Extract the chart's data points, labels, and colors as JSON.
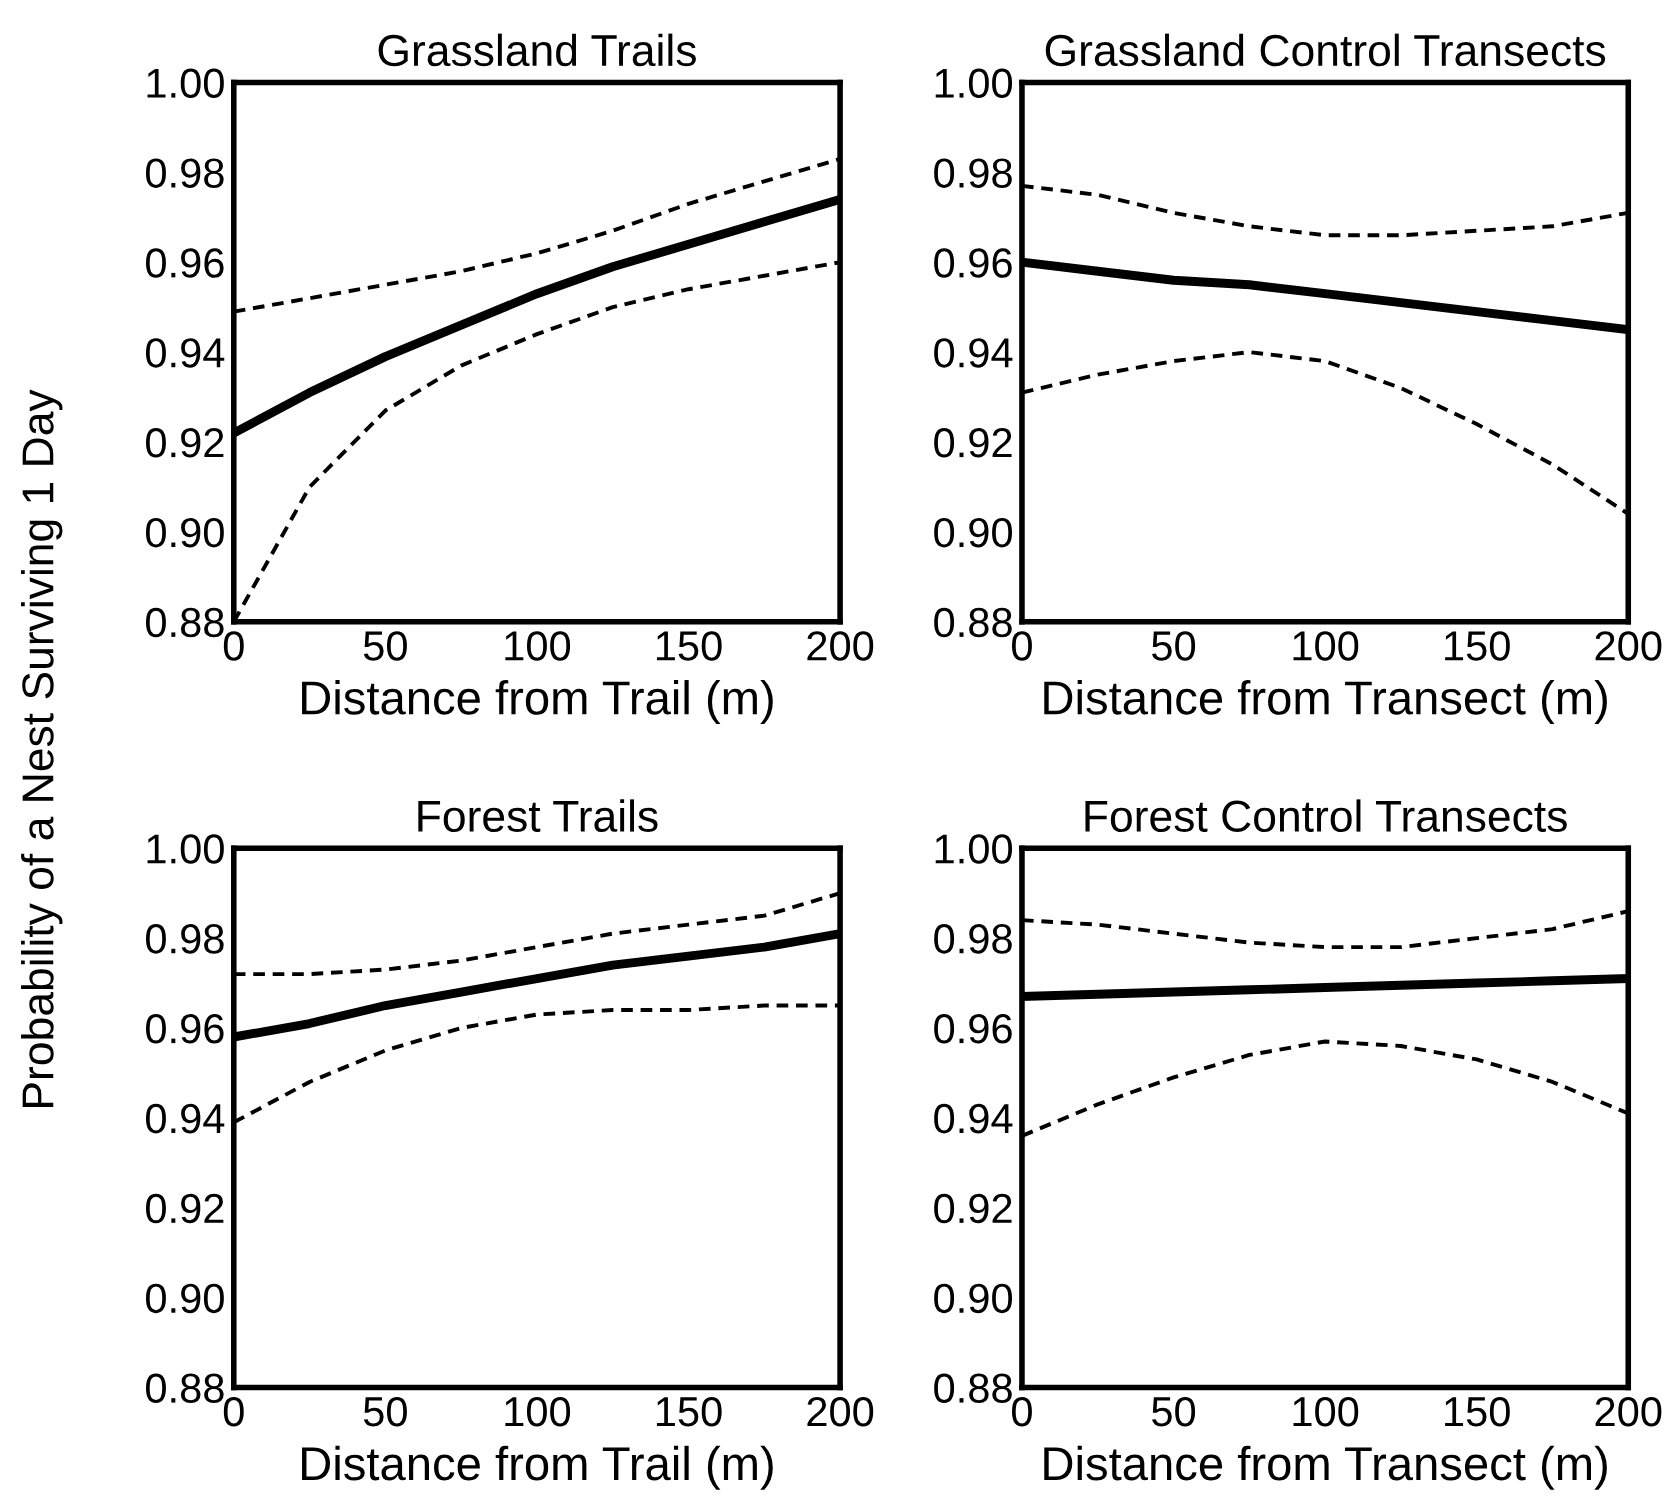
{
  "chart_data": [
    {
      "type": "line",
      "title": "Grassland Trails",
      "xlabel": "Distance from Trail (m)",
      "ylabel": "Probability of a Nest Surviving 1 Day",
      "x": [
        0,
        25,
        50,
        75,
        100,
        125,
        150,
        175,
        200
      ],
      "series": [
        {
          "color": "#000000",
          "line_style": "solid",
          "values": [
            0.922,
            0.931,
            0.939,
            0.946,
            0.953,
            0.959,
            0.964,
            0.969,
            0.974
          ]
        },
        {
          "color": "#000000",
          "line_style": "dashed",
          "values": [
            0.949,
            0.952,
            0.955,
            0.958,
            0.962,
            0.967,
            0.973,
            0.978,
            0.983
          ]
        },
        {
          "color": "#000000",
          "line_style": "dashed",
          "values": [
            0.88,
            0.91,
            0.927,
            0.937,
            0.944,
            0.95,
            0.954,
            0.957,
            0.96
          ]
        }
      ],
      "xlim": [
        0,
        200
      ],
      "ylim": [
        0.88,
        1.0
      ],
      "xticks": [
        0,
        50,
        100,
        150,
        200
      ],
      "yticks": [
        {
          "value": 0.88,
          "label": "0.88"
        },
        {
          "value": 0.9,
          "label": "0.90"
        },
        {
          "value": 0.92,
          "label": "0.92"
        },
        {
          "value": 0.94,
          "label": "0.94"
        },
        {
          "value": 0.96,
          "label": "0.96"
        },
        {
          "value": 0.98,
          "label": "0.98"
        },
        {
          "value": 1.0,
          "label": "1.00"
        }
      ],
      "grid": false,
      "marker": "none"
    },
    {
      "type": "line",
      "title": "Grassland Control Transects",
      "xlabel": "Distance from Transect (m)",
      "x": [
        0,
        25,
        50,
        75,
        100,
        125,
        150,
        175,
        200
      ],
      "series": [
        {
          "color": "#000000",
          "line_style": "solid",
          "values": [
            0.96,
            0.958,
            0.956,
            0.955,
            0.953,
            0.951,
            0.949,
            0.947,
            0.945
          ]
        },
        {
          "color": "#000000",
          "line_style": "dashed",
          "values": [
            0.977,
            0.975,
            0.971,
            0.968,
            0.966,
            0.966,
            0.967,
            0.968,
            0.971
          ]
        },
        {
          "color": "#000000",
          "line_style": "dashed",
          "values": [
            0.931,
            0.935,
            0.938,
            0.94,
            0.938,
            0.932,
            0.924,
            0.915,
            0.904
          ]
        }
      ],
      "xlim": [
        0,
        200
      ],
      "ylim": [
        0.88,
        1.0
      ],
      "xticks": [
        0,
        50,
        100,
        150,
        200
      ],
      "yticks": [
        {
          "value": 0.88,
          "label": "0.88"
        },
        {
          "value": 0.9,
          "label": "0.90"
        },
        {
          "value": 0.92,
          "label": "0.92"
        },
        {
          "value": 0.94,
          "label": "0.94"
        },
        {
          "value": 0.96,
          "label": "0.96"
        },
        {
          "value": 0.98,
          "label": "0.98"
        },
        {
          "value": 1.0,
          "label": "1.00"
        }
      ],
      "grid": false,
      "marker": "none"
    },
    {
      "type": "line",
      "title": "Forest Trails",
      "xlabel": "Distance from Trail (m)",
      "x": [
        0,
        25,
        50,
        75,
        100,
        125,
        150,
        175,
        200
      ],
      "series": [
        {
          "color": "#000000",
          "line_style": "solid",
          "values": [
            0.958,
            0.961,
            0.965,
            0.968,
            0.971,
            0.974,
            0.976,
            0.978,
            0.981
          ]
        },
        {
          "color": "#000000",
          "line_style": "dashed",
          "values": [
            0.972,
            0.972,
            0.973,
            0.975,
            0.978,
            0.981,
            0.983,
            0.985,
            0.99
          ]
        },
        {
          "color": "#000000",
          "line_style": "dashed",
          "values": [
            0.939,
            0.948,
            0.955,
            0.96,
            0.963,
            0.964,
            0.964,
            0.965,
            0.965
          ]
        }
      ],
      "xlim": [
        0,
        200
      ],
      "ylim": [
        0.88,
        1.0
      ],
      "xticks": [
        0,
        50,
        100,
        150,
        200
      ],
      "yticks": [
        {
          "value": 0.88,
          "label": "0.88"
        },
        {
          "value": 0.9,
          "label": "0.90"
        },
        {
          "value": 0.92,
          "label": "0.92"
        },
        {
          "value": 0.94,
          "label": "0.94"
        },
        {
          "value": 0.96,
          "label": "0.96"
        },
        {
          "value": 0.98,
          "label": "0.98"
        },
        {
          "value": 1.0,
          "label": "1.00"
        }
      ],
      "grid": false,
      "marker": "none"
    },
    {
      "type": "line",
      "title": "Forest Control Transects",
      "xlabel": "Distance from Transect (m)",
      "x": [
        0,
        25,
        50,
        75,
        100,
        125,
        150,
        175,
        200
      ],
      "series": [
        {
          "color": "#000000",
          "line_style": "solid",
          "values": [
            0.967,
            0.9675,
            0.968,
            0.9685,
            0.969,
            0.9695,
            0.97,
            0.9705,
            0.971
          ]
        },
        {
          "color": "#000000",
          "line_style": "dashed",
          "values": [
            0.984,
            0.983,
            0.981,
            0.979,
            0.978,
            0.978,
            0.98,
            0.982,
            0.986
          ]
        },
        {
          "color": "#000000",
          "line_style": "dashed",
          "values": [
            0.936,
            0.943,
            0.949,
            0.954,
            0.957,
            0.956,
            0.953,
            0.948,
            0.941
          ]
        }
      ],
      "xlim": [
        0,
        200
      ],
      "ylim": [
        0.88,
        1.0
      ],
      "xticks": [
        0,
        50,
        100,
        150,
        200
      ],
      "yticks": [
        {
          "value": 0.88,
          "label": "0.88"
        },
        {
          "value": 0.9,
          "label": "0.90"
        },
        {
          "value": 0.92,
          "label": "0.92"
        },
        {
          "value": 0.94,
          "label": "0.94"
        },
        {
          "value": 0.96,
          "label": "0.96"
        },
        {
          "value": 0.98,
          "label": "0.98"
        },
        {
          "value": 1.0,
          "label": "1.00"
        }
      ],
      "grid": false,
      "marker": "none"
    }
  ]
}
